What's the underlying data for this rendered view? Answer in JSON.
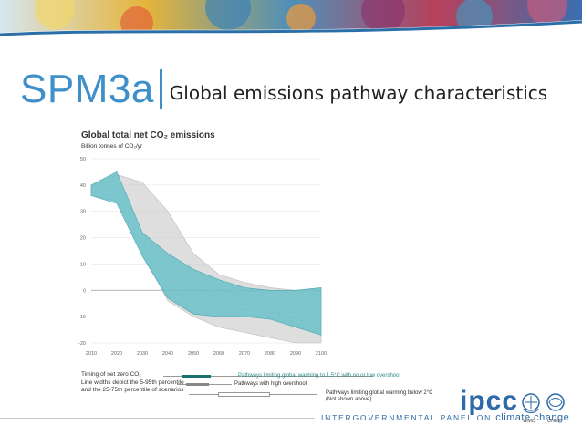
{
  "slide": {
    "code": "SPM3a",
    "title": "Global emissions pathway characteristics"
  },
  "chart_data": {
    "type": "area",
    "title": "Global total net CO₂ emissions",
    "ylabel": "Billion tonnes of CO₂/yr",
    "xlabel": "",
    "xlim": [
      2010,
      2100
    ],
    "ylim": [
      -20,
      50
    ],
    "x_ticks": [
      "2010",
      "2020",
      "2030",
      "2040",
      "2050",
      "2060",
      "2070",
      "2080",
      "2090",
      "2100"
    ],
    "y_ticks": [
      "50",
      "40",
      "30",
      "20",
      "10",
      "0",
      "-10",
      "-20"
    ],
    "grid": true,
    "series": [
      {
        "name": "Pathways limiting global warming to 1.5°C with no or low overshoot",
        "color": "#5bbcc5",
        "x": [
          2010,
          2020,
          2030,
          2040,
          2050,
          2060,
          2070,
          2080,
          2090,
          2100
        ],
        "upper": [
          40,
          45,
          22,
          14,
          8,
          4,
          1,
          0,
          0,
          1
        ],
        "lower": [
          36,
          33,
          13,
          -3,
          -9,
          -10,
          -10,
          -11,
          -14,
          -17
        ]
      },
      {
        "name": "Pathways with high overshoot",
        "color": "#c8c8c8",
        "x": [
          2010,
          2020,
          2030,
          2040,
          2050,
          2060,
          2070,
          2080,
          2090,
          2100
        ],
        "upper": [
          40,
          44,
          41,
          30,
          14,
          6,
          3,
          1,
          0,
          1
        ],
        "lower": [
          36,
          34,
          14,
          -4,
          -10,
          -14,
          -16,
          -18,
          -20,
          -20
        ]
      }
    ],
    "legend": {
      "heading": "Timing of net zero CO₂\nLine widths depict the 5-95th percentile and the 25-75th percentile of scenarios",
      "items": [
        {
          "label": "Pathways limiting global warming to 1.5°C with no or low overshoot",
          "color": "#1a6f6f"
        },
        {
          "label": "Pathways with high overshoot",
          "color": "#888888"
        },
        {
          "label": "Pathways limiting global warming below 2°C",
          "note": "(Not shown above)",
          "color": "#999999"
        }
      ]
    }
  },
  "footer": {
    "org_prefix": "INTERGOVERNMENTAL PANEL ON",
    "org_suffix": "climate change",
    "logo": "ipcc",
    "partner_1": "WMO",
    "partner_2": "UNEP"
  }
}
